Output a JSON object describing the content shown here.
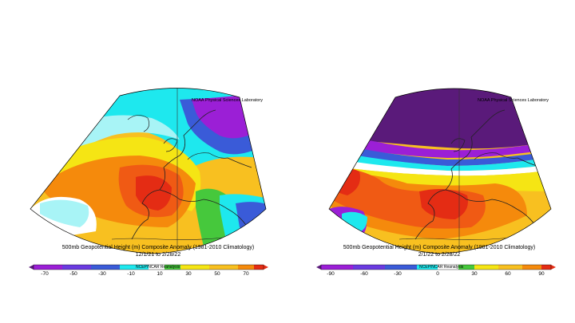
{
  "panels": [
    {
      "credit": "NOAA Physical Sciences Laboratory",
      "title": "500mb Geopotential Height (m) Composite Anomaly (1981-2010 Climatology)",
      "date_range": "12/1/21  to 2/28/22",
      "colorbar_source": "NCEP/NCAR Reanalysis",
      "colorbar_ticks": [
        "-70",
        "-50",
        "-30",
        "-10",
        "10",
        "30",
        "50",
        "70"
      ]
    },
    {
      "credit": "NOAA Physical Sciences Laboratory",
      "title": "500mb Geopotential Height (m) Composite Anomaly (1981-2010 Climatology)",
      "date_range": "2/1/22  to 2/28/22",
      "colorbar_source": "NCEP/NCAR Reanalysis",
      "colorbar_ticks": [
        "-90",
        "-60",
        "-30",
        "0",
        "30",
        "60",
        "90"
      ]
    }
  ],
  "colors": {
    "purple": "#9b1fd6",
    "dark_purple": "#5a1a7a",
    "blue": "#3a5bd8",
    "cyan": "#1ee8ee",
    "light_cyan": "#a8f4f6",
    "white": "#ffffff",
    "yellow": "#f5e514",
    "light_orange": "#f8c020",
    "orange": "#f58a0c",
    "red_orange": "#f05a14",
    "red": "#e42c14",
    "green": "#46c83c",
    "lime": "#a0e040"
  }
}
